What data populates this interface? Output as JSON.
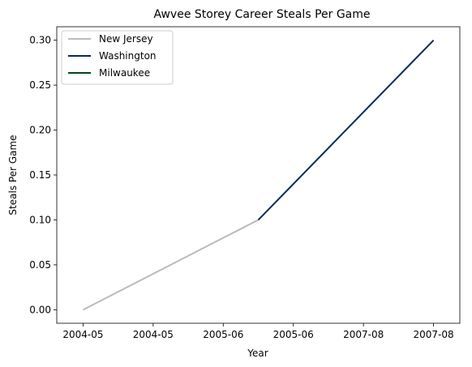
{
  "chart_data": {
    "type": "line",
    "title": "Awvee Storey Career Steals Per Game",
    "xlabel": "Year",
    "ylabel": "Steals Per Game",
    "x_ticks": [
      "2004-05",
      "2004-05",
      "2005-06",
      "2005-06",
      "2007-08",
      "2007-08"
    ],
    "y_ticks": [
      "0.00",
      "0.05",
      "0.10",
      "0.15",
      "0.20",
      "0.25",
      "0.30"
    ],
    "ylim": [
      -0.015,
      0.315
    ],
    "xlim": [
      -0.15,
      2.15
    ],
    "grid": false,
    "legend_position": "upper-left",
    "series": [
      {
        "name": "New Jersey",
        "color": "#bbbbbb",
        "x": [
          0,
          1
        ],
        "y": [
          0.0,
          0.1
        ]
      },
      {
        "name": "Washington",
        "color": "#002b5c",
        "x": [
          1,
          2
        ],
        "y": [
          0.1,
          0.3
        ]
      },
      {
        "name": "Milwaukee",
        "color": "#00471b",
        "x": [],
        "y": []
      }
    ]
  }
}
